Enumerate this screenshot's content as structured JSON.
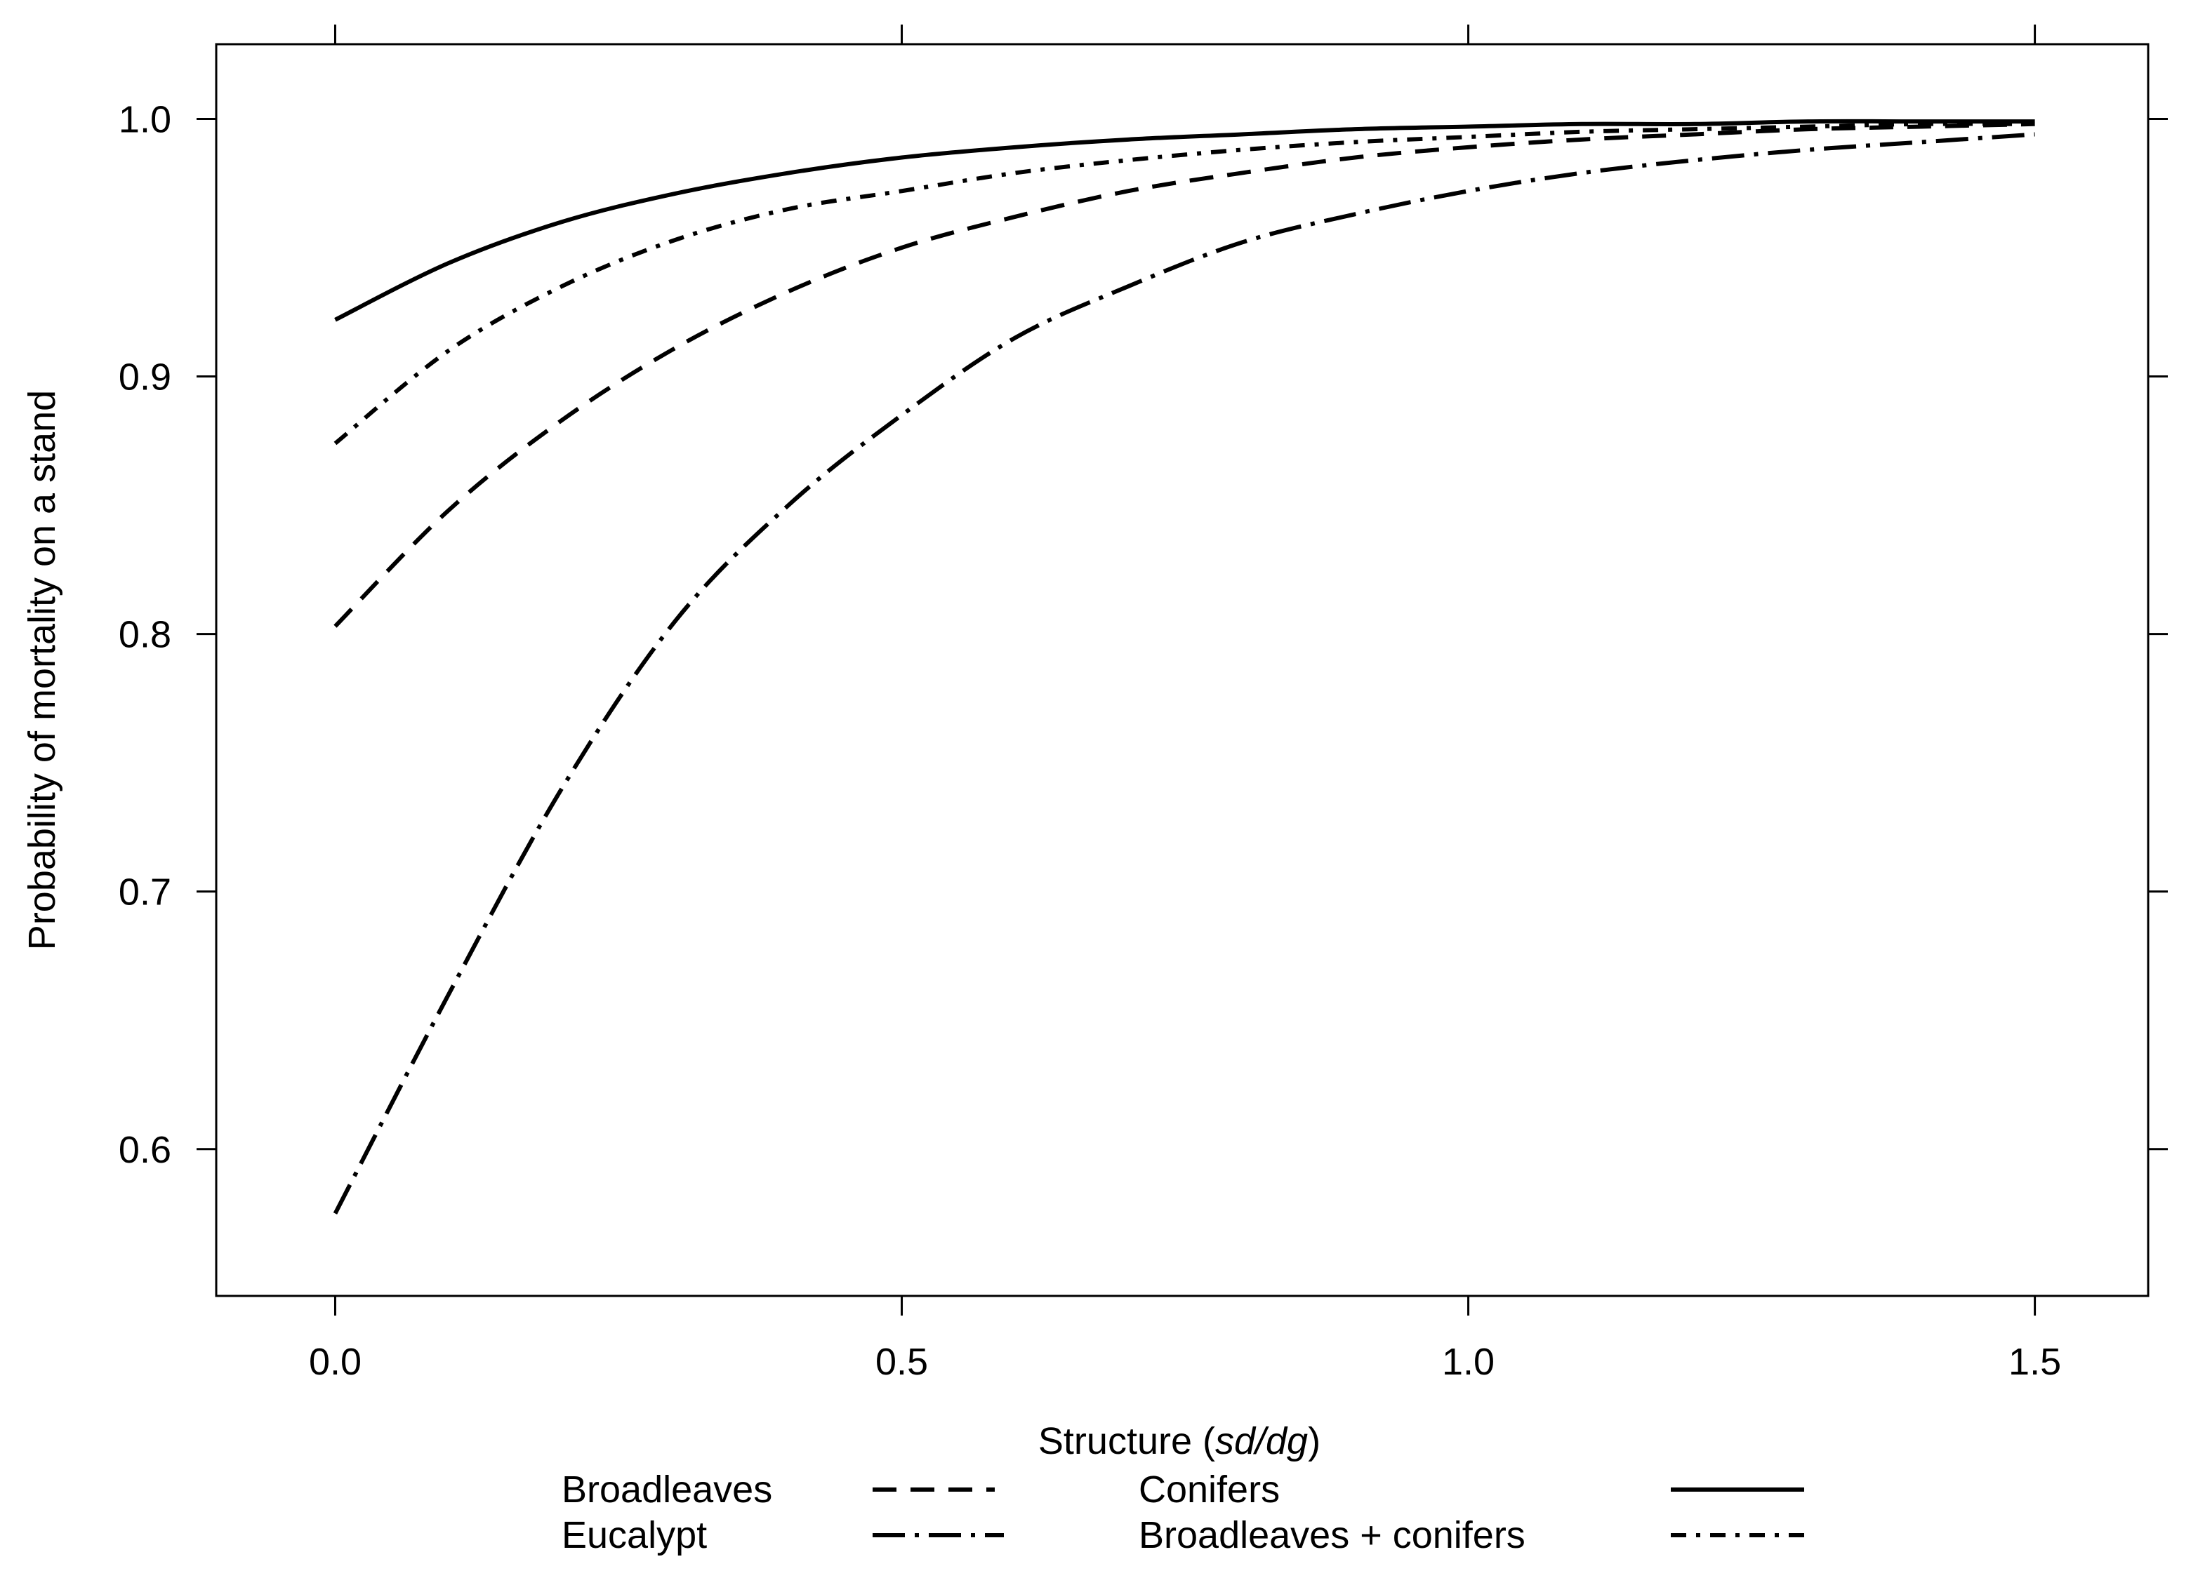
{
  "chart_data": {
    "type": "line",
    "title": "",
    "xlabel": {
      "prefix": "Structure (",
      "italic": "sd/dg",
      "suffix": ")"
    },
    "ylabel": "Probability of mortality on a stand",
    "xlim": [
      -0.105,
      1.6
    ],
    "ylim": [
      0.543,
      1.029
    ],
    "xticks": [
      0.0,
      0.5,
      1.0,
      1.5
    ],
    "xtick_labels": [
      "0.0",
      "0.5",
      "1.0",
      "1.5"
    ],
    "yticks": [
      0.6,
      0.7,
      0.8,
      0.9,
      1.0
    ],
    "ytick_labels": [
      "0.6",
      "0.7",
      "0.8",
      "0.9",
      "1.0"
    ],
    "grid": false,
    "legend_position": "bottom",
    "x": [
      0.0,
      0.1,
      0.2,
      0.3,
      0.4,
      0.5,
      0.6,
      0.7,
      0.8,
      0.9,
      1.0,
      1.1,
      1.2,
      1.3,
      1.4,
      1.5
    ],
    "series": [
      {
        "name": "Broadleaves",
        "line_style": "dashed",
        "values": [
          0.803,
          0.848,
          0.883,
          0.911,
          0.933,
          0.95,
          0.962,
          0.972,
          0.979,
          0.985,
          0.989,
          0.992,
          0.994,
          0.996,
          0.997,
          0.998
        ]
      },
      {
        "name": "Conifers",
        "line_style": "solid",
        "values": [
          0.922,
          0.944,
          0.96,
          0.971,
          0.979,
          0.985,
          0.989,
          0.992,
          0.994,
          0.996,
          0.997,
          0.998,
          0.998,
          0.999,
          0.999,
          0.999
        ]
      },
      {
        "name": "Eucalypt",
        "line_style": "long-dash-dot",
        "values": [
          0.575,
          0.66,
          0.74,
          0.805,
          0.85,
          0.885,
          0.915,
          0.935,
          0.952,
          0.963,
          0.972,
          0.979,
          0.984,
          0.988,
          0.991,
          0.994
        ]
      },
      {
        "name": "Broadleaves + conifers",
        "line_style": "dash-dot",
        "values": [
          0.874,
          0.91,
          0.935,
          0.953,
          0.965,
          0.972,
          0.979,
          0.984,
          0.988,
          0.991,
          0.993,
          0.995,
          0.996,
          0.997,
          0.998,
          0.998
        ]
      }
    ]
  }
}
